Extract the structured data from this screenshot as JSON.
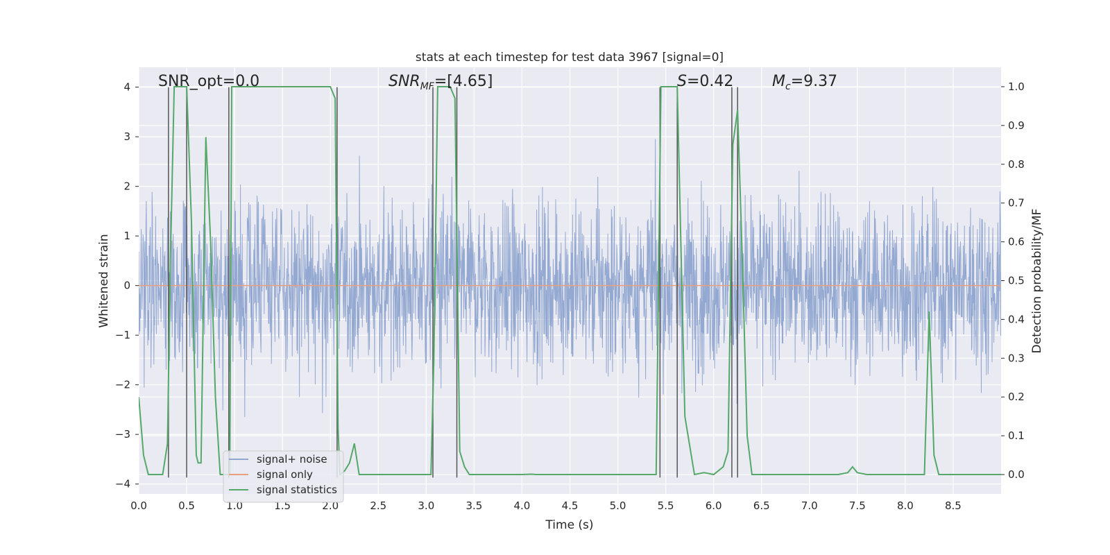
{
  "chart_data": {
    "type": "line",
    "title": "stats at each timestep for test data 3967 [signal=0]",
    "xlabel": "Time (s)",
    "ylabel_left": "Whitened strain",
    "ylabel_right": "Detection probability/MF",
    "xlim": [
      0.0,
      9.0
    ],
    "ylim_left": [
      -4.2,
      4.4
    ],
    "ylim_right": [
      -0.05,
      1.05
    ],
    "xticks": [
      "0.0",
      "0.5",
      "1.0",
      "1.5",
      "2.0",
      "2.5",
      "3.0",
      "3.5",
      "4.0",
      "4.5",
      "5.0",
      "5.5",
      "6.0",
      "6.5",
      "7.0",
      "7.5",
      "8.0",
      "8.5"
    ],
    "yticks_left": [
      "-4",
      "-3",
      "-2",
      "-1",
      "0",
      "1",
      "2",
      "3",
      "4"
    ],
    "yticks_right": [
      "0.0",
      "0.1",
      "0.2",
      "0.3",
      "0.4",
      "0.5",
      "0.6",
      "0.7",
      "0.8",
      "0.9",
      "1.0"
    ],
    "grid": true,
    "legend": {
      "placement": "lower-left",
      "entries": [
        "signal+ noise",
        "signal only",
        "signal statistics"
      ]
    },
    "annotations": {
      "snr_opt": "SNR_opt=0.0",
      "snr_mf_prefix": "SNR",
      "snr_mf_sub": "MF",
      "snr_mf_value": "=[4.65]",
      "s_prefix": "S",
      "s_value": "=0.42",
      "mc_prefix": "M",
      "mc_sub": "c",
      "mc_value": "=9.37"
    },
    "series": [
      {
        "name": "signal+ noise",
        "axis": "left",
        "color": "#8fa5cf",
        "description_of_values": "whitened strain noise samples over 0-9 s, envelope approx -4 to 4"
      },
      {
        "name": "signal only",
        "axis": "left",
        "color": "#e8a07f",
        "values_constant": 0.0
      },
      {
        "name": "signal statistics",
        "axis": "right",
        "color": "#55a868",
        "x": [
          0.0,
          0.05,
          0.1,
          0.2,
          0.25,
          0.3,
          0.33,
          0.37,
          0.45,
          0.5,
          0.55,
          0.6,
          0.62,
          0.65,
          0.7,
          0.75,
          0.8,
          0.85,
          0.9,
          0.95,
          0.97,
          1.0,
          1.5,
          2.0,
          2.05,
          2.08,
          2.1,
          2.15,
          2.2,
          2.25,
          2.3,
          2.35,
          2.5,
          2.8,
          3.0,
          3.05,
          3.08,
          3.12,
          3.15,
          3.25,
          3.3,
          3.35,
          3.4,
          3.45,
          3.5,
          3.6,
          4.0,
          4.1,
          4.15,
          4.5,
          5.0,
          5.4,
          5.45,
          5.5,
          5.6,
          5.62,
          5.7,
          5.8,
          5.9,
          6.0,
          6.1,
          6.15,
          6.2,
          6.25,
          6.3,
          6.35,
          6.4,
          6.6,
          7.0,
          7.3,
          7.4,
          7.45,
          7.5,
          7.6,
          8.0,
          8.2,
          8.25,
          8.3,
          8.35,
          8.5,
          9.0
        ],
        "values": [
          0.2,
          0.05,
          0.0,
          0.0,
          0.0,
          0.08,
          0.55,
          1.0,
          1.0,
          1.0,
          0.65,
          0.05,
          0.03,
          0.03,
          0.87,
          0.6,
          0.2,
          0.0,
          0.0,
          0.0,
          1.0,
          1.0,
          1.0,
          1.0,
          0.97,
          0.12,
          0.0,
          0.01,
          0.03,
          0.08,
          0.0,
          0.0,
          0.0,
          0.0,
          0.0,
          0.0,
          0.3,
          1.0,
          1.0,
          1.0,
          0.97,
          0.06,
          0.02,
          0.0,
          0.0,
          0.0,
          0.0,
          0.001,
          0.0,
          0.0,
          0.0,
          0.0,
          1.0,
          1.0,
          1.0,
          1.0,
          0.15,
          0.0,
          0.005,
          0.0,
          0.02,
          0.06,
          0.85,
          0.94,
          0.55,
          0.1,
          0.0,
          0.0,
          0.0,
          0.0,
          0.005,
          0.02,
          0.005,
          0.0,
          0.0,
          0.0,
          0.42,
          0.05,
          0.0,
          0.0,
          0.0
        ]
      }
    ],
    "vertical_lines_x": [
      0.31,
      0.5,
      0.94,
      2.07,
      3.07,
      3.32,
      5.44,
      5.62,
      6.19,
      6.25
    ]
  }
}
